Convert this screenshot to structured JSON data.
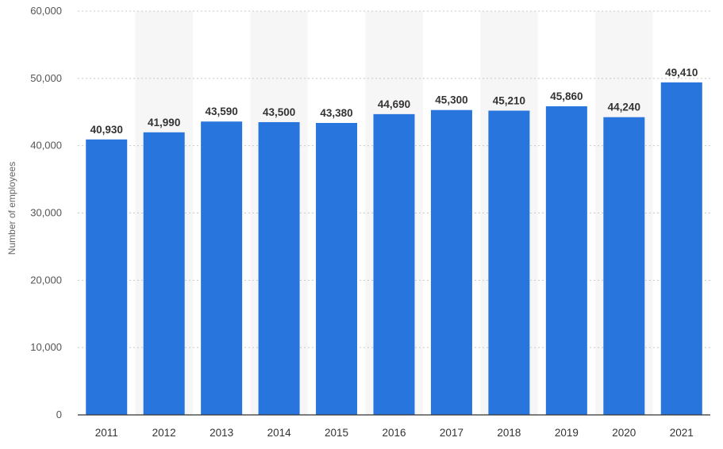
{
  "chart_data": {
    "type": "bar",
    "title": "",
    "xlabel": "",
    "ylabel": "Number of employees",
    "categories": [
      "2011",
      "2012",
      "2013",
      "2014",
      "2015",
      "2016",
      "2017",
      "2018",
      "2019",
      "2020",
      "2021"
    ],
    "values": [
      40930,
      41990,
      43590,
      43500,
      43380,
      44690,
      45300,
      45210,
      45860,
      44240,
      49410
    ],
    "value_labels": [
      "40,930",
      "41,990",
      "43,590",
      "43,500",
      "43,380",
      "44,690",
      "45,300",
      "45,210",
      "45,860",
      "44,240",
      "49,410"
    ],
    "ylim": [
      0,
      60000
    ],
    "yticks": [
      0,
      10000,
      20000,
      30000,
      40000,
      50000,
      60000
    ],
    "ytick_labels": [
      "0",
      "10,000",
      "20,000",
      "30,000",
      "40,000",
      "50,000",
      "60,000"
    ],
    "grid": "horizontal dotted",
    "alternating_column_shading": true,
    "bar_color": "#2876DD",
    "shade_color": "#F6F6F6",
    "grid_color": "#C8C8C8",
    "axis_color": "#333333"
  }
}
